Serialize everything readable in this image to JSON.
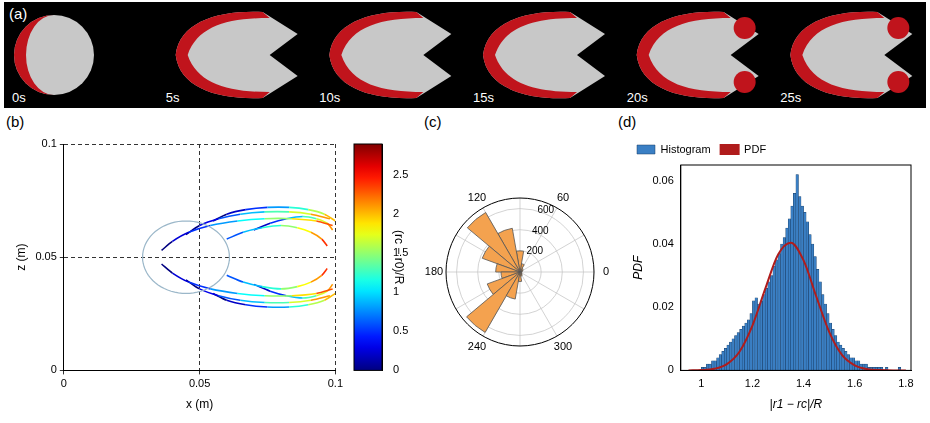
{
  "panel_a": {
    "label": "(a)",
    "frames": [
      "0s",
      "5s",
      "10s",
      "15s",
      "20s",
      "25s"
    ]
  },
  "chart_data": [
    {
      "panel": "(b)",
      "type": "scatter",
      "xlabel": "x (m)",
      "ylabel": "z (m)",
      "xlim": [
        0,
        0.1
      ],
      "xticks": [
        0,
        0.05,
        0.1
      ],
      "ylim": [
        0,
        0.1
      ],
      "yticks": [
        0,
        0.05,
        0.1
      ],
      "grid": true,
      "trajectories": [
        {
          "x": [
            0.036,
            0.04,
            0.046,
            0.054,
            0.064,
            0.074,
            0.084,
            0.093,
            0.099
          ],
          "z": [
            0.053,
            0.057,
            0.061,
            0.064,
            0.066,
            0.067,
            0.067,
            0.066,
            0.064
          ],
          "color_values": [
            0,
            0.25,
            0.5,
            0.8,
            1.1,
            1.5,
            1.9,
            2.3,
            2.7
          ]
        },
        {
          "x": [
            0.045,
            0.05,
            0.057,
            0.065,
            0.074,
            0.083,
            0.091,
            0.098
          ],
          "z": [
            0.06,
            0.064,
            0.067,
            0.069,
            0.07,
            0.07,
            0.069,
            0.067
          ],
          "color_values": [
            0,
            0.3,
            0.6,
            0.9,
            1.3,
            1.7,
            2.1,
            2.5
          ]
        },
        {
          "x": [
            0.055,
            0.06,
            0.067,
            0.075,
            0.083,
            0.09,
            0.096,
            0.1
          ],
          "z": [
            0.066,
            0.069,
            0.071,
            0.072,
            0.072,
            0.071,
            0.069,
            0.066
          ],
          "color_values": [
            0,
            0.2,
            0.5,
            0.8,
            1.2,
            1.6,
            2.0,
            2.4
          ]
        },
        {
          "x": [
            0.06,
            0.066,
            0.073,
            0.08,
            0.086,
            0.091,
            0.095,
            0.097
          ],
          "z": [
            0.058,
            0.061,
            0.063,
            0.064,
            0.063,
            0.061,
            0.058,
            0.055
          ],
          "color_values": [
            0.6,
            0.9,
            1.2,
            1.5,
            1.8,
            2.1,
            2.4,
            2.8
          ]
        },
        {
          "x": [
            0.07,
            0.076,
            0.082,
            0.088,
            0.093,
            0.097,
            0.099
          ],
          "z": [
            0.062,
            0.065,
            0.067,
            0.068,
            0.067,
            0.065,
            0.062
          ],
          "color_values": [
            0.2,
            0.5,
            0.9,
            1.3,
            1.7,
            2.1,
            2.5
          ]
        },
        {
          "x": [
            0.036,
            0.04,
            0.046,
            0.054,
            0.064,
            0.074,
            0.084,
            0.093,
            0.099
          ],
          "z": [
            0.047,
            0.043,
            0.039,
            0.036,
            0.034,
            0.033,
            0.033,
            0.034,
            0.036
          ],
          "color_values": [
            0,
            0.25,
            0.5,
            0.8,
            1.1,
            1.5,
            1.9,
            2.3,
            2.7
          ]
        },
        {
          "x": [
            0.045,
            0.05,
            0.057,
            0.065,
            0.074,
            0.083,
            0.091,
            0.098
          ],
          "z": [
            0.04,
            0.036,
            0.033,
            0.031,
            0.03,
            0.03,
            0.031,
            0.033
          ],
          "color_values": [
            0,
            0.3,
            0.6,
            0.9,
            1.3,
            1.7,
            2.1,
            2.5
          ]
        },
        {
          "x": [
            0.055,
            0.06,
            0.067,
            0.075,
            0.083,
            0.09,
            0.096,
            0.1
          ],
          "z": [
            0.034,
            0.031,
            0.029,
            0.028,
            0.028,
            0.029,
            0.031,
            0.034
          ],
          "color_values": [
            0,
            0.2,
            0.5,
            0.8,
            1.2,
            1.6,
            2.0,
            2.4
          ]
        },
        {
          "x": [
            0.06,
            0.066,
            0.073,
            0.08,
            0.086,
            0.091,
            0.095,
            0.097
          ],
          "z": [
            0.042,
            0.039,
            0.037,
            0.036,
            0.037,
            0.039,
            0.042,
            0.045
          ],
          "color_values": [
            0.6,
            0.9,
            1.2,
            1.5,
            1.8,
            2.1,
            2.4,
            2.8
          ]
        },
        {
          "x": [
            0.07,
            0.076,
            0.082,
            0.088,
            0.093,
            0.097,
            0.099
          ],
          "z": [
            0.038,
            0.035,
            0.033,
            0.032,
            0.033,
            0.035,
            0.038
          ],
          "color_values": [
            0.2,
            0.5,
            0.9,
            1.3,
            1.7,
            2.1,
            2.5
          ]
        }
      ],
      "circle": {
        "center": [
          0.045,
          0.05
        ],
        "radius": 0.016,
        "color": "#9bb7c9"
      },
      "colorbar": {
        "label": "(rc − r0)/R",
        "range": [
          0,
          2.9
        ],
        "ticks": [
          0,
          0.5,
          1,
          1.5,
          2,
          2.5
        ]
      }
    },
    {
      "panel": "(c)",
      "type": "polar_histogram",
      "bins": [
        0,
        20,
        40,
        60,
        80,
        100,
        120,
        140,
        160,
        180,
        200,
        220,
        240,
        260,
        280,
        300,
        320,
        340,
        360
      ],
      "counts": [
        20,
        30,
        40,
        80,
        200,
        420,
        650,
        380,
        230,
        180,
        330,
        660,
        260,
        90,
        40,
        30,
        20,
        15
      ],
      "color": "#f4a24f",
      "rlim": [
        0,
        700
      ],
      "rticks": [
        200,
        400,
        600
      ],
      "thetaticks": [
        0,
        60,
        120,
        180,
        240,
        300
      ],
      "grid": true
    },
    {
      "panel": "(d)",
      "type": "histogram",
      "xlabel": "|r1 − rc|/R",
      "ylabel": "PDF",
      "xlim": [
        0.92,
        1.82
      ],
      "xticks": [
        1,
        1.2,
        1.4,
        1.6,
        1.8
      ],
      "ylim": [
        0,
        0.065
      ],
      "yticks": [
        0,
        0.02,
        0.04,
        0.06
      ],
      "legend": "top",
      "series": [
        {
          "name": "Histogram",
          "type": "bar",
          "color": "#3a7fc4",
          "bins": [
            1.0,
            1.01,
            1.02,
            1.03,
            1.04,
            1.05,
            1.06,
            1.07,
            1.08,
            1.09,
            1.1,
            1.11,
            1.12,
            1.13,
            1.14,
            1.15,
            1.16,
            1.17,
            1.18,
            1.19,
            1.2,
            1.21,
            1.22,
            1.23,
            1.24,
            1.25,
            1.26,
            1.27,
            1.28,
            1.29,
            1.3,
            1.31,
            1.32,
            1.33,
            1.34,
            1.35,
            1.36,
            1.37,
            1.38,
            1.39,
            1.4,
            1.41,
            1.42,
            1.43,
            1.44,
            1.45,
            1.46,
            1.47,
            1.48,
            1.49,
            1.5,
            1.51,
            1.52,
            1.53,
            1.54,
            1.55,
            1.56,
            1.57,
            1.58,
            1.59,
            1.6,
            1.61,
            1.62,
            1.63,
            1.64,
            1.65,
            1.66,
            1.67,
            1.68,
            1.69,
            1.7,
            1.71,
            1.72,
            1.73,
            1.74,
            1.75,
            1.76,
            1.77,
            1.78,
            1.79,
            1.8
          ],
          "values": [
            0.001,
            0.001,
            0.002,
            0.002,
            0.003,
            0.003,
            0.004,
            0.005,
            0.006,
            0.007,
            0.008,
            0.009,
            0.01,
            0.011,
            0.012,
            0.013,
            0.014,
            0.015,
            0.016,
            0.018,
            0.022,
            0.023,
            0.021,
            0.022,
            0.024,
            0.026,
            0.028,
            0.03,
            0.033,
            0.035,
            0.037,
            0.04,
            0.042,
            0.045,
            0.048,
            0.052,
            0.056,
            0.062,
            0.055,
            0.052,
            0.05,
            0.047,
            0.043,
            0.04,
            0.036,
            0.032,
            0.028,
            0.024,
            0.021,
            0.018,
            0.015,
            0.013,
            0.011,
            0.009,
            0.008,
            0.007,
            0.006,
            0.005,
            0.004,
            0.004,
            0.003,
            0.003,
            0.002,
            0.002,
            0.002,
            0.001,
            0.001,
            0.001,
            0.001,
            0.001,
            0.001,
            0.0,
            0.001,
            0.0,
            0.0,
            0.0,
            0.0,
            0.001,
            0.0,
            0.0
          ]
        },
        {
          "name": "PDF",
          "type": "line",
          "color": "#b01c1c",
          "x": [
            0.95,
            1.0,
            1.05,
            1.1,
            1.15,
            1.2,
            1.25,
            1.3,
            1.35,
            1.4,
            1.45,
            1.5,
            1.55,
            1.6,
            1.65,
            1.7,
            1.75,
            1.8
          ],
          "values": [
            0.0,
            0.0001,
            0.0005,
            0.002,
            0.006,
            0.0142,
            0.0258,
            0.0366,
            0.0404,
            0.0348,
            0.0233,
            0.0122,
            0.0049,
            0.0016,
            0.0004,
            0.0001,
            0.0,
            0.0
          ]
        }
      ]
    }
  ]
}
